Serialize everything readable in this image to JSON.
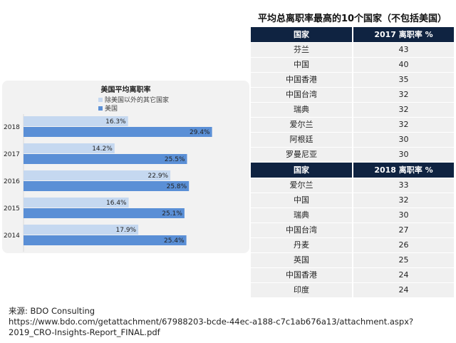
{
  "chart_data": {
    "type": "bar",
    "orientation": "horizontal",
    "title": "美国平均离职率",
    "categories": [
      "2018",
      "2017",
      "2016",
      "2015",
      "2014"
    ],
    "series": [
      {
        "name": "除美国以外的其它国家",
        "values": [
          16.3,
          14.2,
          22.9,
          16.4,
          17.9
        ],
        "color": "#c5d8f0"
      },
      {
        "name": "美国",
        "values": [
          29.4,
          25.5,
          25.8,
          25.1,
          25.4
        ],
        "color": "#5a8fd6"
      }
    ],
    "value_format": "%",
    "legend": "top",
    "grid": false
  },
  "table": {
    "title": "平均总离职率最高的10个国家（不包括美国）",
    "sections": [
      {
        "headers": [
          "国家",
          "2017 离职率 %"
        ],
        "rows": [
          [
            "芬兰",
            "43"
          ],
          [
            "中国",
            "40"
          ],
          [
            "中国香港",
            "35"
          ],
          [
            "中国台湾",
            "32"
          ],
          [
            "瑞典",
            "32"
          ],
          [
            "爱尔兰",
            "32"
          ],
          [
            "阿根廷",
            "30"
          ],
          [
            "罗曼尼亚",
            "30"
          ]
        ]
      },
      {
        "headers": [
          "国家",
          "2018 离职率 %"
        ],
        "rows": [
          [
            "爱尔兰",
            "33"
          ],
          [
            "中国",
            "32"
          ],
          [
            "瑞典",
            "30"
          ],
          [
            "中国台湾",
            "27"
          ],
          [
            "丹麦",
            "26"
          ],
          [
            "英国",
            "25"
          ],
          [
            "中国香港",
            "24"
          ],
          [
            "印度",
            "24"
          ]
        ]
      }
    ],
    "header_color": "#0f2341"
  },
  "source": {
    "label": "来源: BDO Consulting",
    "url": "https://www.bdo.com/getattachment/67988203-bcde-44ec-a188-c7c1ab676a13/attachment.aspx?2019_CRO-Insights-Report_FINAL.pdf"
  }
}
